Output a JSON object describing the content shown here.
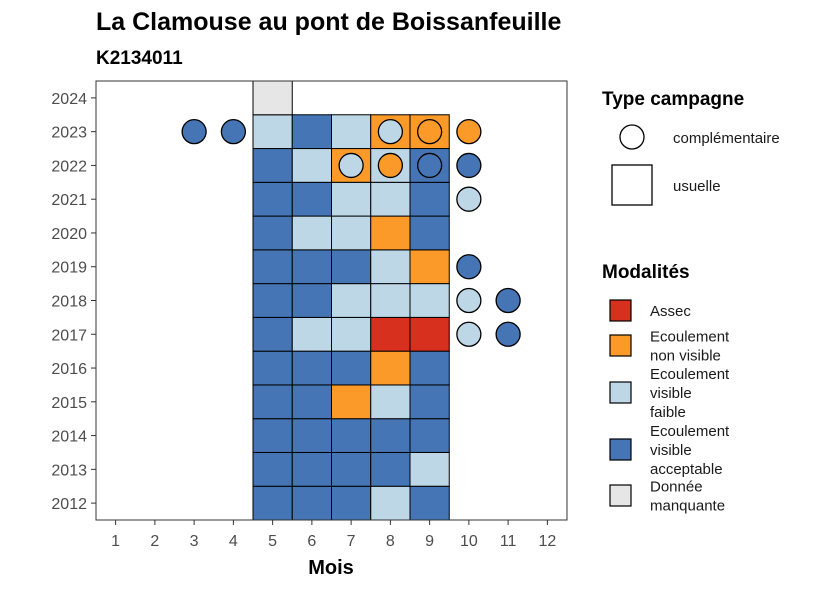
{
  "chart_data": {
    "type": "heatmap",
    "title": "La Clamouse au pont de Boissanfeuille",
    "subtitle": "K2134011",
    "xlabel": "Mois",
    "ylabel": "",
    "x_ticks": [
      "1",
      "2",
      "3",
      "4",
      "5",
      "6",
      "7",
      "8",
      "9",
      "10",
      "11",
      "12"
    ],
    "y_ticks": [
      "2012",
      "2013",
      "2014",
      "2015",
      "2016",
      "2017",
      "2018",
      "2019",
      "2020",
      "2021",
      "2022",
      "2023",
      "2024"
    ],
    "legend_shape": {
      "title": "Type campagne",
      "items": [
        {
          "label": "complémentaire",
          "shape": "circle"
        },
        {
          "label": "usuelle",
          "shape": "square"
        }
      ]
    },
    "legend_fill": {
      "title": "Modalités",
      "items": [
        {
          "key": "assec",
          "lines": [
            "Assec"
          ],
          "color": "#d7301f"
        },
        {
          "key": "nonvisible",
          "lines": [
            "Ecoulement",
            "non visible"
          ],
          "color": "#fb9a29"
        },
        {
          "key": "faible",
          "lines": [
            "Ecoulement",
            "visible",
            "faible"
          ],
          "color": "#bdd7e7"
        },
        {
          "key": "acceptable",
          "lines": [
            "Ecoulement",
            "visible",
            "acceptable"
          ],
          "color": "#4575b4"
        },
        {
          "key": "manquante",
          "lines": [
            "Donnée",
            "manquante"
          ],
          "color": "#e6e6e6"
        }
      ]
    },
    "usuelle": [
      {
        "year": 2012,
        "values": {
          "5": "acceptable",
          "6": "acceptable",
          "7": "acceptable",
          "8": "faible",
          "9": "acceptable"
        }
      },
      {
        "year": 2013,
        "values": {
          "5": "acceptable",
          "6": "acceptable",
          "7": "acceptable",
          "8": "acceptable",
          "9": "faible"
        }
      },
      {
        "year": 2014,
        "values": {
          "5": "acceptable",
          "6": "acceptable",
          "7": "acceptable",
          "8": "acceptable",
          "9": "acceptable"
        }
      },
      {
        "year": 2015,
        "values": {
          "5": "acceptable",
          "6": "acceptable",
          "7": "nonvisible",
          "8": "faible",
          "9": "acceptable"
        }
      },
      {
        "year": 2016,
        "values": {
          "5": "acceptable",
          "6": "acceptable",
          "7": "acceptable",
          "8": "nonvisible",
          "9": "acceptable"
        }
      },
      {
        "year": 2017,
        "values": {
          "5": "acceptable",
          "6": "faible",
          "7": "faible",
          "8": "assec",
          "9": "assec"
        }
      },
      {
        "year": 2018,
        "values": {
          "5": "acceptable",
          "6": "acceptable",
          "7": "faible",
          "8": "faible",
          "9": "faible"
        }
      },
      {
        "year": 2019,
        "values": {
          "5": "acceptable",
          "6": "acceptable",
          "7": "acceptable",
          "8": "faible",
          "9": "nonvisible"
        }
      },
      {
        "year": 2020,
        "values": {
          "5": "acceptable",
          "6": "faible",
          "7": "faible",
          "8": "nonvisible",
          "9": "acceptable"
        }
      },
      {
        "year": 2021,
        "values": {
          "5": "acceptable",
          "6": "acceptable",
          "7": "faible",
          "8": "faible",
          "9": "acceptable"
        }
      },
      {
        "year": 2022,
        "values": {
          "5": "acceptable",
          "6": "faible",
          "7": "nonvisible",
          "8": "faible",
          "9": "acceptable"
        }
      },
      {
        "year": 2023,
        "values": {
          "5": "faible",
          "6": "acceptable",
          "7": "faible",
          "8": "nonvisible",
          "9": "nonvisible"
        }
      },
      {
        "year": 2024,
        "values": {
          "5": "manquante"
        }
      }
    ],
    "complementaire": [
      {
        "year": 2023,
        "month": 3,
        "value": "acceptable"
      },
      {
        "year": 2023,
        "month": 4,
        "value": "acceptable"
      },
      {
        "year": 2023,
        "month": 8,
        "value": "faible"
      },
      {
        "year": 2023,
        "month": 9,
        "value": "nonvisible"
      },
      {
        "year": 2023,
        "month": 10,
        "value": "nonvisible"
      },
      {
        "year": 2022,
        "month": 7,
        "value": "faible"
      },
      {
        "year": 2022,
        "month": 8,
        "value": "nonvisible"
      },
      {
        "year": 2022,
        "month": 9,
        "value": "acceptable"
      },
      {
        "year": 2022,
        "month": 10,
        "value": "acceptable"
      },
      {
        "year": 2021,
        "month": 10,
        "value": "faible"
      },
      {
        "year": 2019,
        "month": 10,
        "value": "acceptable"
      },
      {
        "year": 2018,
        "month": 10,
        "value": "faible"
      },
      {
        "year": 2018,
        "month": 11,
        "value": "acceptable"
      },
      {
        "year": 2017,
        "month": 10,
        "value": "faible"
      },
      {
        "year": 2017,
        "month": 11,
        "value": "acceptable"
      }
    ],
    "xlim": [
      0.5,
      12.5
    ],
    "ylim": [
      2011.5,
      2024.5
    ],
    "grid": false,
    "legend_position": "right"
  }
}
